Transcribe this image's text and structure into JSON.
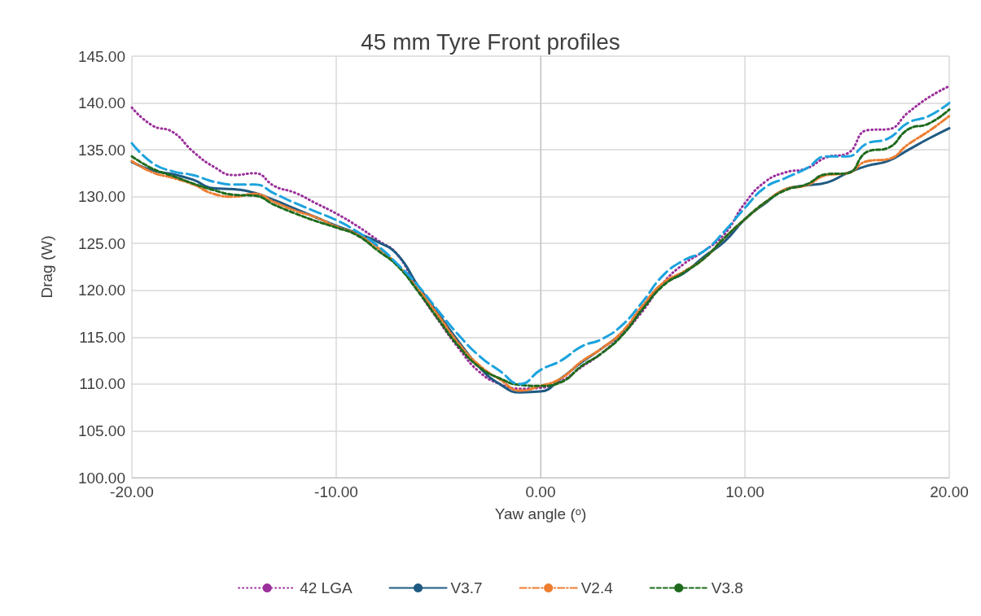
{
  "chart_data": {
    "type": "line",
    "title": "45 mm Tyre Front profiles",
    "xlabel": "Yaw angle (ᵒ)",
    "ylabel": "Drag (W)",
    "x": [
      -20,
      -19,
      -18,
      -17,
      -16,
      -15,
      -14,
      -13,
      -12,
      -11,
      -10,
      -9,
      -8,
      -7,
      -6,
      -5,
      -4,
      -3,
      -2,
      -1,
      0,
      1,
      2,
      3,
      4,
      5,
      6,
      7,
      8,
      9,
      10,
      11,
      12,
      13,
      14,
      15,
      16,
      17,
      18,
      19,
      20
    ],
    "xlim": [
      -20,
      20
    ],
    "xticks": [
      {
        "value": -20,
        "label": "-20.00"
      },
      {
        "value": -10,
        "label": "-10.00"
      },
      {
        "value": 0,
        "label": "0.00"
      },
      {
        "value": 10,
        "label": "10.00"
      },
      {
        "value": 20,
        "label": "20.00"
      }
    ],
    "ylim": [
      100,
      145
    ],
    "yticks": [
      {
        "value": 100,
        "label": "100.00"
      },
      {
        "value": 105,
        "label": "105.00"
      },
      {
        "value": 110,
        "label": "110.00"
      },
      {
        "value": 115,
        "label": "115.00"
      },
      {
        "value": 120,
        "label": "120.00"
      },
      {
        "value": 125,
        "label": "125.00"
      },
      {
        "value": 130,
        "label": "130.00"
      },
      {
        "value": 135,
        "label": "135.00"
      },
      {
        "value": 140,
        "label": "140.00"
      },
      {
        "value": 145,
        "label": "145.00"
      }
    ],
    "grid": true,
    "legend": "bottom",
    "marker": "none",
    "series": [
      {
        "name": "42 LGA",
        "color": "#9b2f9b",
        "line_style": "dotted",
        "values": [
          139.5,
          137.6,
          136.9,
          134.8,
          133.2,
          132.3,
          132.5,
          131.1,
          130.4,
          129.3,
          128.2,
          126.9,
          125.4,
          123.8,
          120,
          116.8,
          113.8,
          111.3,
          110,
          109.5,
          109.6,
          110.3,
          111.8,
          113.3,
          115.3,
          117.8,
          120.8,
          122.8,
          124.2,
          126,
          129.3,
          131.6,
          132.6,
          133,
          134.2,
          134.6,
          137.1,
          137.2,
          139,
          140.6,
          141.8
        ]
      },
      {
        "name": "V3.7",
        "color": "#1f5a82",
        "line_style": "solid",
        "values": [
          133.7,
          132.8,
          132.4,
          131.8,
          130.9,
          130.8,
          130.4,
          129.6,
          128.7,
          127.8,
          126.9,
          126.1,
          125.2,
          123.8,
          120.5,
          117.5,
          114.5,
          111.8,
          110,
          109.1,
          109.2,
          110.6,
          112.3,
          113.8,
          115.5,
          118.2,
          120.7,
          121.8,
          123.6,
          125.2,
          127.6,
          129.3,
          130.8,
          131.2,
          131.5,
          132.5,
          133.3,
          133.8,
          135,
          136.2,
          137.3
        ]
      },
      {
        "name": "V2.4",
        "color": "#ed7d31",
        "line_style": "dashdot",
        "values": [
          133.8,
          132.6,
          132,
          131.3,
          130.3,
          130,
          130.3,
          129.4,
          128.5,
          127.8,
          126.8,
          126,
          124.6,
          122.7,
          120.2,
          117.3,
          114.3,
          112,
          110.5,
          109.3,
          109.8,
          110.6,
          112.4,
          113.8,
          115.6,
          118.4,
          120.8,
          122,
          123.4,
          125.6,
          127.6,
          129.4,
          130.8,
          131.2,
          132.3,
          132.5,
          133.8,
          134,
          135.6,
          137,
          138.6
        ]
      },
      {
        "name": "V3.8",
        "color": "#1e6b1e",
        "line_style": "dashed",
        "values": [
          134.3,
          133,
          132.2,
          131.4,
          130.7,
          130.2,
          130.1,
          129.1,
          128.2,
          127.4,
          126.7,
          125.9,
          124.3,
          122.6,
          119.9,
          116.9,
          114,
          111.8,
          110.6,
          109.9,
          109.8,
          110.2,
          111.9,
          113.3,
          115.2,
          118,
          120.5,
          121.9,
          123.4,
          125.6,
          127.6,
          129.4,
          130.7,
          131.3,
          132.4,
          132.5,
          134.8,
          135.2,
          137.2,
          137.8,
          139.3
        ]
      },
      {
        "color": "#1ca3dd",
        "line_style": "longdash",
        "values": [
          135.7,
          133.6,
          132.7,
          132.3,
          131.6,
          131.3,
          131.3,
          130.3,
          129.3,
          128.4,
          127.5,
          126.3,
          124.8,
          122.8,
          120.5,
          117.8,
          115.2,
          113,
          111.4,
          110,
          111.5,
          112.5,
          114,
          114.8,
          116.3,
          118.8,
          121.6,
          123.2,
          124.2,
          126.3,
          128.8,
          131,
          132,
          133,
          134.3,
          134.3,
          135.7,
          136.2,
          137.9,
          138.6,
          140
        ]
      }
    ]
  }
}
